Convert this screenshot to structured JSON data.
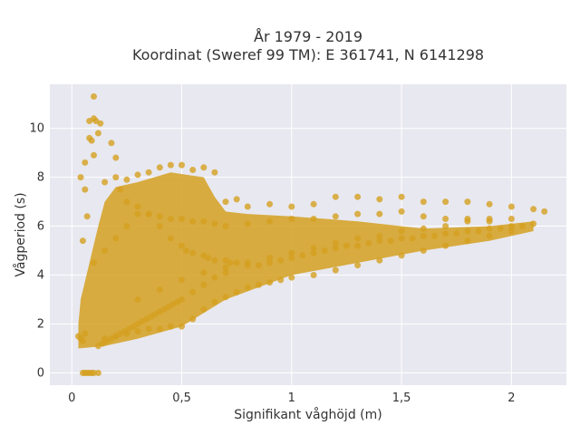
{
  "chart_data": {
    "type": "scatter",
    "title_line1": "År 1979 - 2019",
    "title_line2": "Koordinat (Sweref 99 TM): E 361741, N 6141298",
    "xlabel": "Signifikant våghöjd (m)",
    "ylabel": "Vågperiod (s)",
    "xlim": [
      -0.1,
      2.25
    ],
    "ylim": [
      -0.5,
      11.8
    ],
    "xticks": [
      0,
      0.5,
      1,
      1.5,
      2
    ],
    "xtick_labels": [
      "0",
      "0,5",
      "1",
      "1,5",
      "2"
    ],
    "yticks": [
      0,
      2,
      4,
      6,
      8,
      10
    ],
    "ytick_labels": [
      "0",
      "2",
      "4",
      "6",
      "8",
      "10"
    ],
    "grid": true,
    "legend": "none",
    "colors": {
      "marker": "#d4a020",
      "plot_bg": "#e8e8f0",
      "grid": "#ffffff"
    },
    "series": [
      {
        "x": [
          0.03,
          0.04,
          0.05,
          0.06,
          0.05,
          0.04,
          0.06,
          0.08,
          0.1,
          0.12,
          0.15,
          0.2,
          0.25,
          0.3,
          0.35,
          0.4,
          0.45,
          0.5,
          0.55,
          0.6,
          0.65,
          0.7,
          0.75,
          0.8,
          0.9,
          1.0,
          1.1,
          1.2,
          1.3,
          1.4,
          1.5,
          1.6,
          1.7,
          1.8,
          1.9,
          2.0,
          2.1,
          2.15,
          0.05,
          0.06,
          0.07,
          0.08,
          0.09,
          0.1,
          0.12,
          0.08,
          0.09,
          0.1,
          0.11,
          0.13,
          0.06,
          0.07,
          0.1,
          0.18,
          0.2,
          0.22,
          0.25,
          0.3,
          0.35,
          0.4,
          0.45,
          0.5,
          0.52,
          0.55,
          0.6,
          0.62,
          0.65,
          0.7,
          0.72,
          0.75,
          0.8,
          0.85,
          0.9,
          0.95,
          1.0,
          1.05,
          1.1,
          1.15,
          1.2,
          1.25,
          1.3,
          1.35,
          1.4,
          1.45,
          1.5,
          1.55,
          1.6,
          1.65,
          1.7,
          1.75,
          1.8,
          1.85,
          1.9,
          1.95,
          2.0,
          2.05,
          2.1,
          0.15,
          0.2,
          0.25,
          0.3,
          0.35,
          0.4,
          0.45,
          0.5,
          0.55,
          0.6,
          0.65,
          0.7,
          0.75,
          0.8,
          0.85,
          0.9,
          0.95,
          1.0,
          1.1,
          1.2,
          1.3,
          1.4,
          1.5,
          1.6,
          1.7,
          1.8,
          1.9,
          2.0,
          0.3,
          0.4,
          0.5,
          0.6,
          0.7,
          0.8,
          0.9,
          1.0,
          1.1,
          1.2,
          1.3,
          1.4,
          1.5,
          1.6,
          1.7,
          1.8,
          1.9,
          0.12,
          0.14,
          0.16,
          0.18,
          0.2,
          0.22,
          0.24,
          0.26,
          0.28,
          0.3,
          0.32,
          0.34,
          0.36,
          0.38,
          0.4,
          0.42,
          0.44,
          0.46,
          0.48,
          0.5,
          0.55,
          0.6,
          0.65,
          0.7,
          0.1,
          0.15,
          0.2,
          0.25,
          0.3,
          0.35,
          0.4,
          0.45,
          0.5,
          0.55,
          0.6,
          0.65,
          0.7,
          0.8,
          0.9,
          1.0,
          1.1,
          1.2,
          1.3,
          1.4,
          1.5,
          1.6,
          1.7,
          1.8,
          1.9,
          2.0
        ],
        "y": [
          1.5,
          1.4,
          1.3,
          1.6,
          5.4,
          8.0,
          8.6,
          10.3,
          10.4,
          9.8,
          7.8,
          8.0,
          7.9,
          8.1,
          8.2,
          8.4,
          8.5,
          8.5,
          8.3,
          8.4,
          8.2,
          7.0,
          7.1,
          6.8,
          6.9,
          6.8,
          6.9,
          7.2,
          7.2,
          7.1,
          7.2,
          7.0,
          7.0,
          7.0,
          6.9,
          6.8,
          6.7,
          6.6,
          0.0,
          0.0,
          0.0,
          0.0,
          0.0,
          0.0,
          0.0,
          9.6,
          9.5,
          11.3,
          10.3,
          10.2,
          7.5,
          6.4,
          8.9,
          9.4,
          8.8,
          7.5,
          7.0,
          6.8,
          6.5,
          6.0,
          5.5,
          5.2,
          5.0,
          4.9,
          4.8,
          4.7,
          4.6,
          4.6,
          4.5,
          4.5,
          4.4,
          4.4,
          4.5,
          4.6,
          4.7,
          4.8,
          4.9,
          5.0,
          5.1,
          5.2,
          5.2,
          5.3,
          5.4,
          5.4,
          5.5,
          5.5,
          5.6,
          5.6,
          5.7,
          5.7,
          5.8,
          5.8,
          5.9,
          5.9,
          6.0,
          6.0,
          6.1,
          1.4,
          1.5,
          1.6,
          1.7,
          1.8,
          1.8,
          1.9,
          1.9,
          2.2,
          2.6,
          2.9,
          3.1,
          3.3,
          3.5,
          3.6,
          3.7,
          3.8,
          3.9,
          4.0,
          4.2,
          4.4,
          4.6,
          4.8,
          5.0,
          5.2,
          5.4,
          5.6,
          5.8,
          3.0,
          3.4,
          3.8,
          4.1,
          4.3,
          4.5,
          4.7,
          4.9,
          5.1,
          5.3,
          5.5,
          5.6,
          5.8,
          5.9,
          6.0,
          6.2,
          6.3,
          1.1,
          1.2,
          1.3,
          1.4,
          1.5,
          1.6,
          1.7,
          1.8,
          1.9,
          2.0,
          2.1,
          2.2,
          2.3,
          2.4,
          2.5,
          2.6,
          2.7,
          2.8,
          2.9,
          3.0,
          3.3,
          3.6,
          3.9,
          4.1,
          4.5,
          5.0,
          5.5,
          6.0,
          6.5,
          6.5,
          6.4,
          6.3,
          6.3,
          6.2,
          6.2,
          6.1,
          6.0,
          6.1,
          6.2,
          6.3,
          6.3,
          6.4,
          6.5,
          6.5,
          6.6,
          6.4,
          6.3,
          6.3,
          6.2,
          6.3
        ]
      }
    ]
  }
}
